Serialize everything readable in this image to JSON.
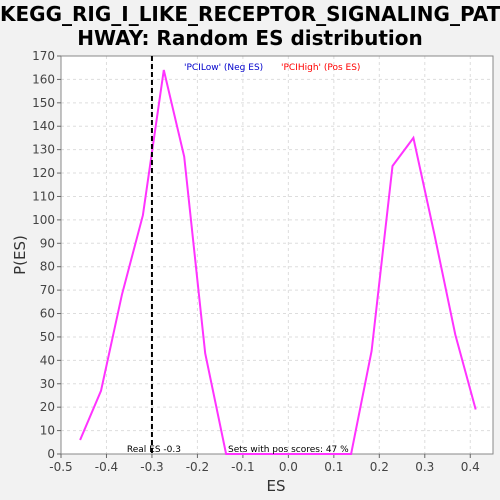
{
  "title_lines": [
    "KEGG_RIG_I_LIKE_RECEPTOR_SIGNALING_PAT",
    "HWAY: Random ES distribution"
  ],
  "chart_data": {
    "type": "line",
    "title": "KEGG_RIG_I_LIKE_RECEPTOR_SIGNALING_PATHWAY: Random ES distribution",
    "xlabel": "ES",
    "ylabel": "P(ES)",
    "xlim": [
      -0.5,
      0.45
    ],
    "ylim": [
      0,
      170
    ],
    "xticks": [
      -0.5,
      -0.4,
      -0.3,
      -0.2,
      -0.1,
      0.0,
      0.1,
      0.2,
      0.3,
      0.4
    ],
    "xtick_labels": [
      "-0.5",
      "-0.4",
      "-0.3",
      "-0.2",
      "-0.1",
      "0.0",
      "0.1",
      "0.2",
      "0.3",
      "0.4"
    ],
    "yticks": [
      0,
      10,
      20,
      30,
      40,
      50,
      60,
      70,
      80,
      90,
      100,
      110,
      120,
      130,
      140,
      150,
      160,
      170
    ],
    "grid": true,
    "series": [
      {
        "color": "#ff33ff",
        "x": [
          -0.458,
          -0.412,
          -0.366,
          -0.32,
          -0.274,
          -0.229,
          -0.183,
          -0.137,
          -0.091,
          -0.045,
          0.0,
          0.046,
          0.092,
          0.138,
          0.183,
          0.229,
          0.275,
          0.321,
          0.367,
          0.412
        ],
        "y": [
          6,
          27,
          68,
          102,
          164,
          127,
          43,
          0,
          0,
          0,
          0,
          0,
          0,
          0,
          44,
          123,
          135,
          94,
          51,
          19
        ]
      }
    ],
    "real_es": -0.3,
    "legend": [
      {
        "label": "'PCILow' (Neg ES)",
        "color": "#0000cc"
      },
      {
        "label": "'PCIHigh' (Pos ES)",
        "color": "#ff0000"
      }
    ],
    "annotations": {
      "real_es_label": "Real ES -0.3",
      "pos_scores_label": "Sets with pos scores: 47 %"
    }
  }
}
